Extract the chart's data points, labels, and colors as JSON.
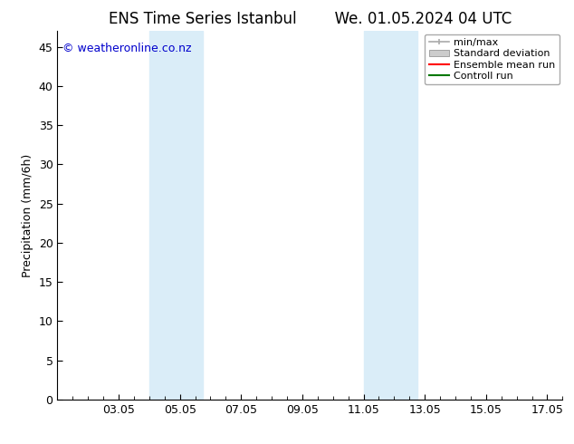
{
  "title_left": "ENS Time Series Istanbul",
  "title_right": "We. 01.05.2024 04 UTC",
  "ylabel": "Precipitation (mm/6h)",
  "xlim": [
    1,
    17.5
  ],
  "ylim": [
    0,
    47
  ],
  "yticks": [
    0,
    5,
    10,
    15,
    20,
    25,
    30,
    35,
    40,
    45
  ],
  "xtick_labels": [
    "03.05",
    "05.05",
    "07.05",
    "09.05",
    "11.05",
    "13.05",
    "15.05",
    "17.05"
  ],
  "xtick_positions": [
    3,
    5,
    7,
    9,
    11,
    13,
    15,
    17
  ],
  "shaded_regions": [
    {
      "xmin": 4.0,
      "xmax": 5.75,
      "color": "#daedf8"
    },
    {
      "xmin": 11.0,
      "xmax": 12.75,
      "color": "#daedf8"
    }
  ],
  "watermark_text": "© weatheronline.co.nz",
  "watermark_color": "#0000cc",
  "background_color": "#ffffff",
  "plot_bg_color": "#ffffff",
  "legend_items": [
    {
      "label": "min/max",
      "color": "#aaaaaa",
      "type": "minmax"
    },
    {
      "label": "Standard deviation",
      "color": "#cccccc",
      "type": "stddev"
    },
    {
      "label": "Ensemble mean run",
      "color": "#ff0000",
      "type": "line"
    },
    {
      "label": "Controll run",
      "color": "#007700",
      "type": "line"
    }
  ],
  "title_fontsize": 12,
  "ylabel_fontsize": 9,
  "tick_fontsize": 9,
  "legend_fontsize": 8
}
